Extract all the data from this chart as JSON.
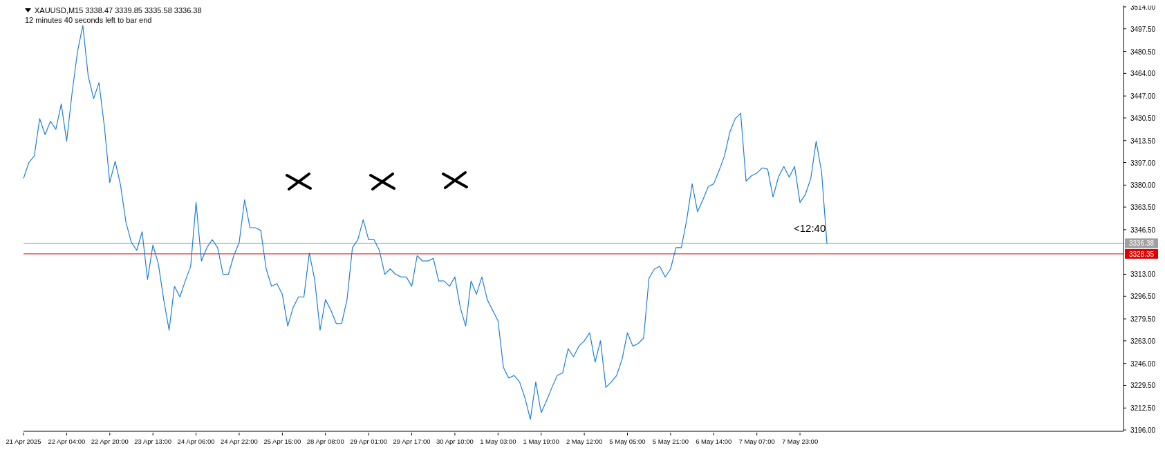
{
  "chart_data": {
    "type": "line",
    "title": "XAUUSD,M15  3338.47 3339.85 3335.58 3336.38",
    "subtitle": "12 minutes 40 seconds left to bar end",
    "annotations": [
      "<12:40"
    ],
    "categories": [
      "21 Apr 2025",
      null,
      null,
      null,
      null,
      null,
      null,
      null,
      "22 Apr 04:00",
      null,
      null,
      null,
      null,
      null,
      null,
      null,
      "22 Apr 20:00",
      null,
      null,
      null,
      null,
      null,
      null,
      null,
      "23 Apr 13:00",
      null,
      null,
      null,
      null,
      null,
      null,
      null,
      "24 Apr 06:00",
      null,
      null,
      null,
      null,
      null,
      null,
      null,
      "24 Apr 22:00",
      null,
      null,
      null,
      null,
      null,
      null,
      null,
      "25 Apr 15:00",
      null,
      null,
      null,
      null,
      null,
      null,
      null,
      "28 Apr 08:00",
      null,
      null,
      null,
      null,
      null,
      null,
      null,
      "29 Apr 01:00",
      null,
      null,
      null,
      null,
      null,
      null,
      null,
      "29 Apr 17:00",
      null,
      null,
      null,
      null,
      null,
      null,
      null,
      "30 Apr 10:00",
      null,
      null,
      null,
      null,
      null,
      null,
      null,
      "1 May 03:00",
      null,
      null,
      null,
      null,
      null,
      null,
      null,
      "1 May 19:00",
      null,
      null,
      null,
      null,
      null,
      null,
      null,
      "2 May 12:00",
      null,
      null,
      null,
      null,
      null,
      null,
      null,
      "5 May 05:00",
      null,
      null,
      null,
      null,
      null,
      null,
      null,
      "5 May 21:00",
      null,
      null,
      null,
      null,
      null,
      null,
      null,
      "6 May 14:00",
      null,
      null,
      null,
      null,
      null,
      null,
      null,
      "7 May 07:00",
      null,
      null,
      null,
      null,
      null,
      null,
      null,
      "7 May 23:00",
      null,
      null,
      null,
      null,
      null,
      null,
      null,
      null,
      null,
      null,
      null,
      null,
      null,
      null,
      null,
      null,
      null,
      null,
      null,
      null,
      null,
      null,
      null,
      null,
      null,
      null,
      null,
      null,
      null,
      null,
      null,
      null,
      null,
      null,
      null,
      null,
      null,
      null,
      null,
      null,
      null,
      null,
      null,
      null,
      null,
      null,
      null,
      null,
      null,
      null,
      null,
      null,
      null,
      null,
      null,
      null,
      null,
      null,
      null,
      null
    ],
    "series": [
      {
        "color": "#1e7fd8",
        "values": [
          3385,
          3397,
          3402,
          3430,
          3418,
          3428,
          3422,
          3441,
          3413,
          3449,
          3480,
          3500,
          3462,
          3445,
          3457,
          3424,
          3382,
          3398,
          3380,
          3352,
          3337,
          3331,
          3345,
          3309,
          3335,
          3321,
          3294,
          3271,
          3304,
          3296,
          3308,
          3319,
          3367,
          3323,
          3333,
          3339,
          3333,
          3313,
          3313,
          3327,
          3337,
          3369,
          3348,
          3348,
          3346,
          3317,
          3304,
          3306,
          3298,
          3274,
          3288,
          3296,
          3296,
          3329,
          3309,
          3271,
          3294,
          3286,
          3276,
          3276,
          3294,
          3333,
          3339,
          3354,
          3339,
          3339,
          3331,
          3313,
          3317,
          3313,
          3311,
          3311,
          3304,
          3327,
          3323,
          3323,
          3325,
          3308,
          3308,
          3304,
          3311,
          3288,
          3274,
          3308,
          3298,
          3311,
          3294,
          3286,
          3278,
          3243,
          3235,
          3237,
          3232,
          3220,
          3204,
          3232,
          3209,
          3218,
          3228,
          3237,
          3239,
          3257,
          3251,
          3259,
          3263,
          3269,
          3247,
          3263,
          3228,
          3232,
          3237,
          3249,
          3269,
          3259,
          3261,
          3265,
          3310,
          3317,
          3319,
          3311,
          3317,
          3333,
          3333,
          3354,
          3381,
          3360,
          3369,
          3379,
          3381,
          3391,
          3402,
          3420,
          3430,
          3434,
          3383,
          3387,
          3389,
          3393,
          3392,
          3371,
          3386,
          3394,
          3386,
          3394,
          3367,
          3373,
          3385,
          3413,
          3390,
          3336,
          null,
          null,
          null,
          null,
          null,
          null,
          null,
          null,
          null,
          null,
          null,
          null,
          null,
          null,
          null,
          null,
          null,
          null,
          null,
          null,
          null,
          null,
          null,
          null,
          null,
          null,
          null,
          null,
          null,
          null,
          null,
          null,
          null,
          null,
          null,
          null,
          null,
          null,
          null,
          null,
          null,
          null,
          null,
          null,
          null,
          null,
          null,
          null,
          null,
          null,
          null,
          null,
          null,
          null,
          null
        ]
      }
    ],
    "ylim": [
      3195,
      3515
    ],
    "yticks": [
      {
        "value": 3196,
        "label": "3196.00"
      },
      {
        "value": 3212.5,
        "label": "3212.50"
      },
      {
        "value": 3229.5,
        "label": "3229.50"
      },
      {
        "value": 3246,
        "label": "3246.00"
      },
      {
        "value": 3263,
        "label": "3263.00"
      },
      {
        "value": 3279.5,
        "label": "3279.50"
      },
      {
        "value": 3296.5,
        "label": "3296.50"
      },
      {
        "value": 3313,
        "label": "3313.00"
      },
      {
        "value": 3346.5,
        "label": "3346.50"
      },
      {
        "value": 3363.5,
        "label": "3363.50"
      },
      {
        "value": 3380,
        "label": "3380.00"
      },
      {
        "value": 3397,
        "label": "3397.00"
      },
      {
        "value": 3413.5,
        "label": "3413.50"
      },
      {
        "value": 3430.5,
        "label": "3430.50"
      },
      {
        "value": 3447,
        "label": "3447.00"
      },
      {
        "value": 3464,
        "label": "3464.00"
      },
      {
        "value": 3480.5,
        "label": "3480.50"
      },
      {
        "value": 3497.5,
        "label": "3497.50"
      },
      {
        "value": 3514,
        "label": "3514.00"
      }
    ],
    "ref_lines": [
      {
        "axis": "y",
        "value": 3336.38,
        "label": "3336.38",
        "color": "#a0a0a0",
        "line_style": "solid"
      },
      {
        "axis": "y",
        "value": 3328.35,
        "label": "3328.35",
        "color": "#e00000",
        "line_style": "solid"
      }
    ],
    "marker": "none",
    "line_style": "solid"
  }
}
